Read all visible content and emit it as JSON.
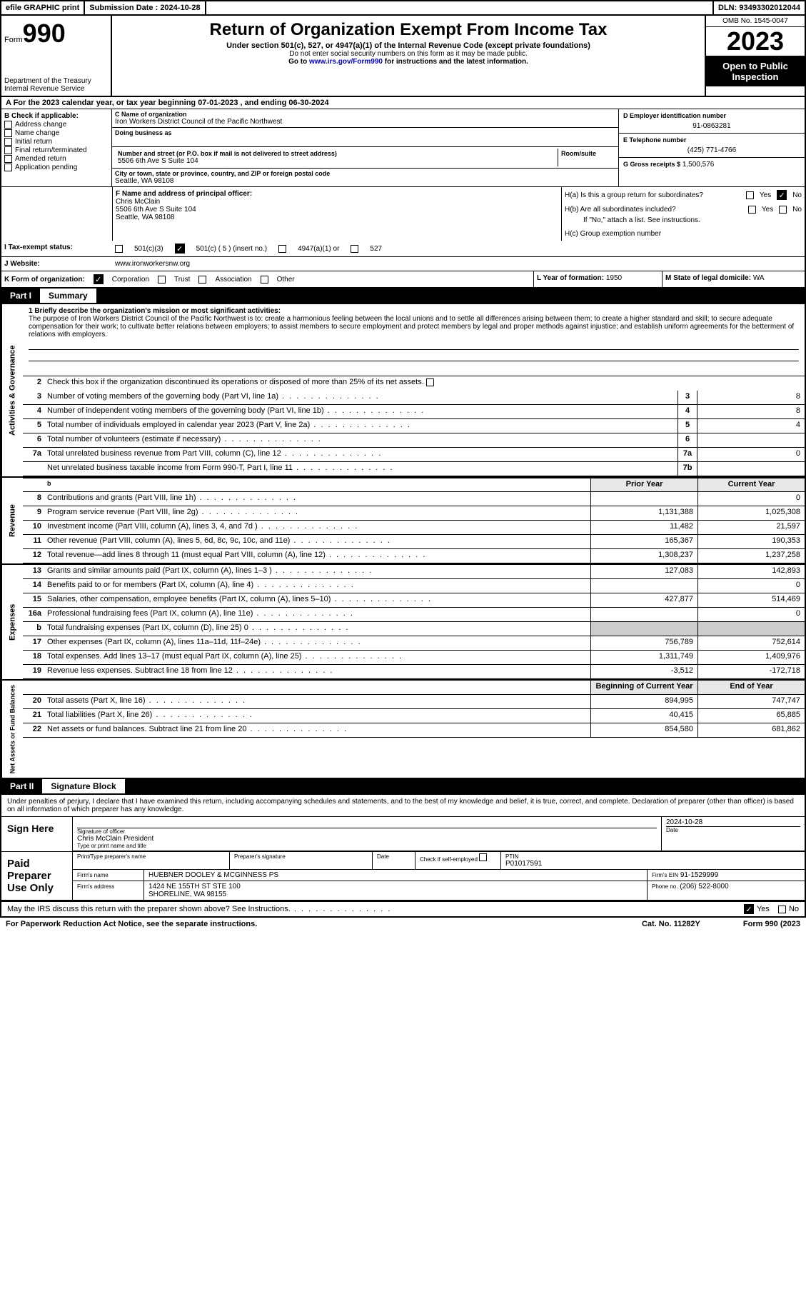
{
  "top_bar": {
    "efile": "efile GRAPHIC print",
    "submission_label": "Submission Date : 2024-10-28",
    "dln": "DLN: 93493302012044"
  },
  "header": {
    "form_label": "Form",
    "form_num": "990",
    "dept": "Department of the Treasury Internal Revenue Service",
    "title": "Return of Organization Exempt From Income Tax",
    "subtitle": "Under section 501(c), 527, or 4947(a)(1) of the Internal Revenue Code (except private foundations)",
    "note1": "Do not enter social security numbers on this form as it may be made public.",
    "note2_pre": "Go to ",
    "note2_link": "www.irs.gov/Form990",
    "note2_post": " for instructions and the latest information.",
    "omb": "OMB No. 1545-0047",
    "year": "2023",
    "inspect": "Open to Public Inspection"
  },
  "line_a": "A For the 2023 calendar year, or tax year beginning 07-01-2023   , and ending 06-30-2024",
  "box_b": {
    "label": "B Check if applicable:",
    "opts": [
      "Address change",
      "Name change",
      "Initial return",
      "Final return/terminated",
      "Amended return",
      "Application pending"
    ]
  },
  "box_c": {
    "name_lbl": "C Name of organization",
    "name": "Iron Workers District Council of the Pacific Northwest",
    "dba_lbl": "Doing business as",
    "addr_lbl": "Number and street (or P.O. box if mail is not delivered to street address)",
    "room_lbl": "Room/suite",
    "addr": "5506 6th Ave S Suite 104",
    "city_lbl": "City or town, state or province, country, and ZIP or foreign postal code",
    "city": "Seattle, WA  98108"
  },
  "box_d": {
    "lbl": "D Employer identification number",
    "val": "91-0863281"
  },
  "box_e": {
    "lbl": "E Telephone number",
    "val": "(425) 771-4766"
  },
  "box_g": {
    "lbl": "G Gross receipts $",
    "val": "1,500,576"
  },
  "box_f": {
    "lbl": "F Name and address of principal officer:",
    "name": "Chris McClain",
    "addr1": "5506 6th Ave S Suite 104",
    "addr2": "Seattle, WA  98108"
  },
  "box_h": {
    "a_lbl": "H(a)  Is this a group return for subordinates?",
    "b_lbl": "H(b)  Are all subordinates included?",
    "b_note": "If \"No,\" attach a list. See instructions.",
    "c_lbl": "H(c)  Group exemption number",
    "yes": "Yes",
    "no": "No"
  },
  "box_i": {
    "lbl": "I  Tax-exempt status:",
    "c3": "501(c)(3)",
    "c": "501(c) ( 5 ) (insert no.)",
    "a1": "4947(a)(1) or",
    "527": "527"
  },
  "box_j": {
    "lbl": "J  Website:",
    "val": "www.ironworkersnw.org"
  },
  "box_k": {
    "lbl": "K Form of organization:",
    "opts": [
      "Corporation",
      "Trust",
      "Association",
      "Other"
    ]
  },
  "box_l": {
    "lbl": "L Year of formation:",
    "val": "1950"
  },
  "box_m": {
    "lbl": "M State of legal domicile:",
    "val": "WA"
  },
  "part1": {
    "label": "Part I",
    "title": "Summary",
    "tab1": "Activities & Governance",
    "tab2": "Revenue",
    "tab3": "Expenses",
    "tab4": "Net Assets or Fund Balances",
    "line1_lbl": "1  Briefly describe the organization's mission or most significant activities:",
    "mission": "The purpose of Iron Workers District Council of the Pacific Northwest is to: create a harmonious feeling between the local unions and to settle all differences arising between them; to create a higher standard and skill; to secure adequate compensation for their work; to cultivate better relations between employers; to assist members to secure employment and protect members by legal and proper methods against injustice; and establish uniform agreements for the betterment of relations with employers.",
    "line2": "Check this box      if the organization discontinued its operations or disposed of more than 25% of its net assets.",
    "rows_gov": [
      {
        "n": "3",
        "d": "Number of voting members of the governing body (Part VI, line 1a)",
        "b": "3",
        "v": "8"
      },
      {
        "n": "4",
        "d": "Number of independent voting members of the governing body (Part VI, line 1b)",
        "b": "4",
        "v": "8"
      },
      {
        "n": "5",
        "d": "Total number of individuals employed in calendar year 2023 (Part V, line 2a)",
        "b": "5",
        "v": "4"
      },
      {
        "n": "6",
        "d": "Total number of volunteers (estimate if necessary)",
        "b": "6",
        "v": ""
      },
      {
        "n": "7a",
        "d": "Total unrelated business revenue from Part VIII, column (C), line 12",
        "b": "7a",
        "v": "0"
      },
      {
        "n": "",
        "d": "Net unrelated business taxable income from Form 990-T, Part I, line 11",
        "b": "7b",
        "v": ""
      }
    ],
    "prior_hdr": "Prior Year",
    "curr_hdr": "Current Year",
    "rows_rev": [
      {
        "n": "8",
        "d": "Contributions and grants (Part VIII, line 1h)",
        "p": "",
        "c": "0"
      },
      {
        "n": "9",
        "d": "Program service revenue (Part VIII, line 2g)",
        "p": "1,131,388",
        "c": "1,025,308"
      },
      {
        "n": "10",
        "d": "Investment income (Part VIII, column (A), lines 3, 4, and 7d )",
        "p": "11,482",
        "c": "21,597"
      },
      {
        "n": "11",
        "d": "Other revenue (Part VIII, column (A), lines 5, 6d, 8c, 9c, 10c, and 11e)",
        "p": "165,367",
        "c": "190,353"
      },
      {
        "n": "12",
        "d": "Total revenue—add lines 8 through 11 (must equal Part VIII, column (A), line 12)",
        "p": "1,308,237",
        "c": "1,237,258"
      }
    ],
    "rows_exp": [
      {
        "n": "13",
        "d": "Grants and similar amounts paid (Part IX, column (A), lines 1–3 )",
        "p": "127,083",
        "c": "142,893"
      },
      {
        "n": "14",
        "d": "Benefits paid to or for members (Part IX, column (A), line 4)",
        "p": "",
        "c": "0"
      },
      {
        "n": "15",
        "d": "Salaries, other compensation, employee benefits (Part IX, column (A), lines 5–10)",
        "p": "427,877",
        "c": "514,469"
      },
      {
        "n": "16a",
        "d": "Professional fundraising fees (Part IX, column (A), line 11e)",
        "p": "",
        "c": "0"
      },
      {
        "n": "b",
        "d": "Total fundraising expenses (Part IX, column (D), line 25) 0",
        "p": "GRAY",
        "c": "GRAY"
      },
      {
        "n": "17",
        "d": "Other expenses (Part IX, column (A), lines 11a–11d, 11f–24e)",
        "p": "756,789",
        "c": "752,614"
      },
      {
        "n": "18",
        "d": "Total expenses. Add lines 13–17 (must equal Part IX, column (A), line 25)",
        "p": "1,311,749",
        "c": "1,409,976"
      },
      {
        "n": "19",
        "d": "Revenue less expenses. Subtract line 18 from line 12",
        "p": "-3,512",
        "c": "-172,718"
      }
    ],
    "boy_hdr": "Beginning of Current Year",
    "eoy_hdr": "End of Year",
    "rows_net": [
      {
        "n": "20",
        "d": "Total assets (Part X, line 16)",
        "p": "894,995",
        "c": "747,747"
      },
      {
        "n": "21",
        "d": "Total liabilities (Part X, line 26)",
        "p": "40,415",
        "c": "65,885"
      },
      {
        "n": "22",
        "d": "Net assets or fund balances. Subtract line 21 from line 20",
        "p": "854,580",
        "c": "681,862"
      }
    ]
  },
  "part2": {
    "label": "Part II",
    "title": "Signature Block",
    "decl": "Under penalties of perjury, I declare that I have examined this return, including accompanying schedules and statements, and to the best of my knowledge and belief, it is true, correct, and complete. Declaration of preparer (other than officer) is based on all information of which preparer has any knowledge.",
    "sign_here": "Sign Here",
    "sig_officer_lbl": "Signature of officer",
    "sig_name": "Chris McClain  President",
    "sig_type_lbl": "Type or print name and title",
    "sig_date_lbl": "Date",
    "sig_date": "2024-10-28",
    "paid": "Paid Preparer Use Only",
    "prep_name_lbl": "Print/Type preparer's name",
    "prep_sig_lbl": "Preparer's signature",
    "date_lbl": "Date",
    "check_lbl": "Check       if self-employed",
    "ptin_lbl": "PTIN",
    "ptin": "P01017591",
    "firm_name_lbl": "Firm's name",
    "firm_name": "HUEBNER DOOLEY & MCGINNESS PS",
    "firm_ein_lbl": "Firm's EIN",
    "firm_ein": "91-1529999",
    "firm_addr_lbl": "Firm's address",
    "firm_addr1": "1424 NE 155TH ST STE 100",
    "firm_addr2": "SHORELINE, WA  98155",
    "phone_lbl": "Phone no.",
    "phone": "(206) 522-8000",
    "discuss": "May the IRS discuss this return with the preparer shown above? See Instructions.",
    "yes": "Yes",
    "no": "No"
  },
  "footer": {
    "pra": "For Paperwork Reduction Act Notice, see the separate instructions.",
    "cat": "Cat. No. 11282Y",
    "form": "Form 990 (2023"
  }
}
